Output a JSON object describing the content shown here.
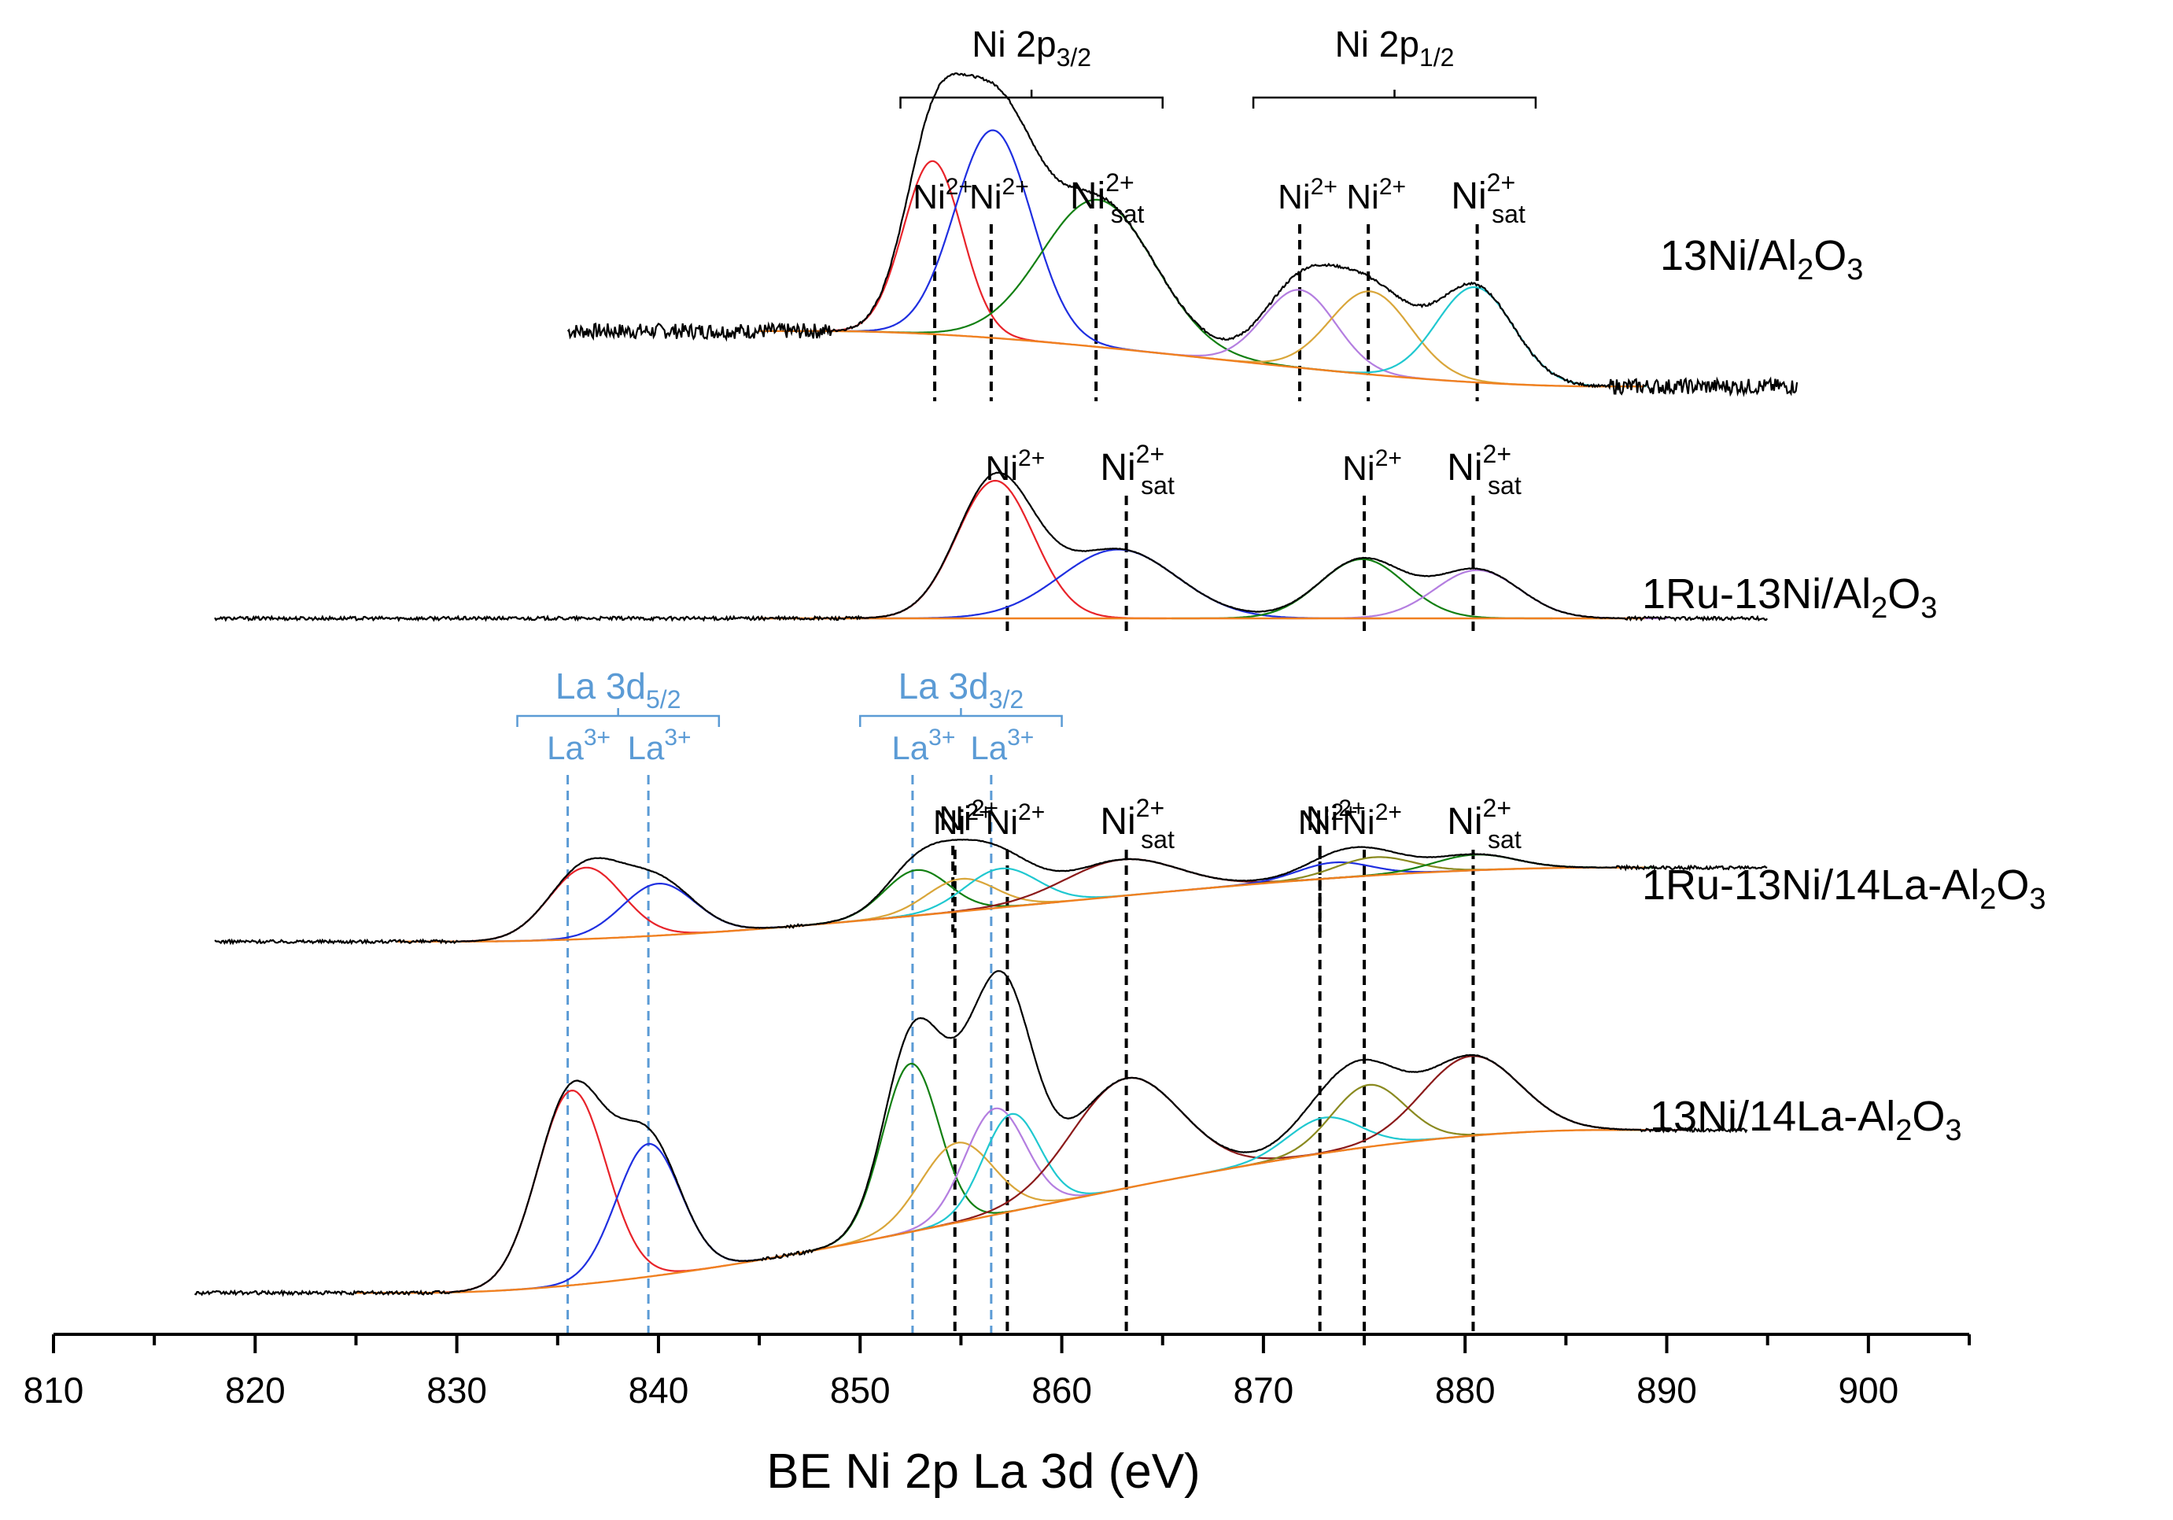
{
  "chart_data": {
    "type": "line",
    "title": "",
    "xlabel": "BE Ni 2p La 3d (eV)",
    "ylabel": "",
    "xlim": [
      810,
      905
    ],
    "x_ticks": [
      810,
      820,
      830,
      840,
      850,
      860,
      870,
      880,
      890,
      900
    ],
    "x_tick_labels": [
      "810",
      "820",
      "830",
      "840",
      "850",
      "860",
      "870",
      "880",
      "890",
      "900"
    ],
    "grid": false,
    "colors": {
      "axis": "#000000",
      "envelope": "#000000",
      "background": "#f08020",
      "ni_ref": "#000000",
      "la_ref": "#5b9bd5",
      "red": "#e8232a",
      "blue": "#1f2fe0",
      "green": "#138013",
      "violet": "#b47ee0",
      "gold": "#d9a63a",
      "cyan": "#20c8d0",
      "olive": "#8a8a20",
      "maroon": "#8b1a1a"
    },
    "group_labels": [
      {
        "text": "Ni 2p3/2",
        "main": "Ni 2p",
        "sub": "3/2",
        "color": "#000000",
        "x_range": [
          852,
          865
        ]
      },
      {
        "text": "Ni 2p1/2",
        "main": "Ni 2p",
        "sub": "1/2",
        "color": "#000000",
        "x_range": [
          869.5,
          883.5
        ]
      },
      {
        "text": "La 3d5/2",
        "main": "La 3d",
        "sub": "5/2",
        "color": "#5b9bd5",
        "x_range": [
          833,
          843
        ]
      },
      {
        "text": "La 3d3/2",
        "main": "La 3d",
        "sub": "3/2",
        "color": "#5b9bd5",
        "x_range": [
          850,
          860
        ]
      }
    ],
    "spectra": [
      {
        "label": "13Ni/Al2O3",
        "main": "13Ni/Al",
        "sub1": "2",
        "mid": "O",
        "sub2": "3",
        "x_range": [
          835.5,
          896.5
        ],
        "baseline_left": 0.36,
        "baseline_right": 0.04,
        "noise": 0.09,
        "bg_start": 848,
        "bg_end": 887,
        "peaks": [
          {
            "component": "Ni2+",
            "center": 853.6,
            "height": 1.0,
            "width": 1.45,
            "color": "#e8232a"
          },
          {
            "component": "Ni2+",
            "center": 856.6,
            "height": 1.2,
            "width": 1.9,
            "color": "#1f2fe0"
          },
          {
            "component": "Ni2+ sat",
            "center": 861.8,
            "height": 0.85,
            "width": 2.8,
            "color": "#138013"
          },
          {
            "component": "Ni2+",
            "center": 871.8,
            "height": 0.45,
            "width": 1.8,
            "color": "#b47ee0"
          },
          {
            "component": "Ni2+",
            "center": 875.3,
            "height": 0.48,
            "width": 2.0,
            "color": "#d9a63a"
          },
          {
            "component": "Ni2+ sat",
            "center": 880.5,
            "height": 0.55,
            "width": 1.9,
            "color": "#20c8d0"
          }
        ],
        "references": [
          {
            "x": 853.7,
            "label": "Ni2+",
            "sat": false,
            "color": "#000000"
          },
          {
            "x": 856.5,
            "label": "Ni2+",
            "sat": false,
            "color": "#000000"
          },
          {
            "x": 861.7,
            "label": "Ni2+sat",
            "sat": true,
            "color": "#000000"
          },
          {
            "x": 871.8,
            "label": "Ni2+",
            "sat": false,
            "color": "#000000"
          },
          {
            "x": 875.2,
            "label": "Ni2+",
            "sat": false,
            "color": "#000000"
          },
          {
            "x": 880.6,
            "label": "Ni2+sat",
            "sat": true,
            "color": "#000000"
          }
        ]
      },
      {
        "label": "1Ru-13Ni/Al2O3",
        "main": "1Ru-13Ni/Al",
        "sub1": "2",
        "mid": "O",
        "sub2": "3",
        "x_range": [
          818.0,
          895.0
        ],
        "baseline_left": 0.08,
        "baseline_right": 0.08,
        "noise": 0.025,
        "bg_start": 848,
        "bg_end": 887,
        "peaks": [
          {
            "component": "Ni2+",
            "center": 856.7,
            "height": 1.0,
            "width": 1.9,
            "color": "#e8232a"
          },
          {
            "component": "Ni2+ sat",
            "center": 862.8,
            "height": 0.5,
            "width": 2.9,
            "color": "#1f2fe0"
          },
          {
            "component": "Ni2+",
            "center": 874.9,
            "height": 0.43,
            "width": 2.1,
            "color": "#138013"
          },
          {
            "component": "Ni2+ sat",
            "center": 880.6,
            "height": 0.35,
            "width": 2.1,
            "color": "#b47ee0"
          }
        ],
        "references": [
          {
            "x": 857.3,
            "label": "Ni2+",
            "sat": false,
            "color": "#000000"
          },
          {
            "x": 863.2,
            "label": "Ni2+sat",
            "sat": true,
            "color": "#000000"
          },
          {
            "x": 875.0,
            "label": "Ni2+",
            "sat": false,
            "color": "#000000"
          },
          {
            "x": 880.4,
            "label": "Ni2+sat",
            "sat": true,
            "color": "#000000"
          }
        ]
      },
      {
        "label": "1Ru-13Ni/14La-Al2O3",
        "main": "1Ru-13Ni/14La-Al",
        "sub1": "2",
        "mid": "O",
        "sub2": "3",
        "x_range": [
          818.0,
          895.0
        ],
        "baseline_left": 0.08,
        "baseline_right": 0.65,
        "noise": 0.025,
        "bg_start": 830,
        "bg_end": 887,
        "peaks": [
          {
            "component": "La3+",
            "center": 836.4,
            "height": 0.55,
            "width": 1.8,
            "color": "#e8232a"
          },
          {
            "component": "La3+",
            "center": 840.0,
            "height": 0.4,
            "width": 1.8,
            "color": "#1f2fe0"
          },
          {
            "component": "La3+",
            "center": 852.8,
            "height": 0.35,
            "width": 1.6,
            "color": "#138013"
          },
          {
            "component": "Ni2+",
            "center": 855.0,
            "height": 0.25,
            "width": 1.7,
            "color": "#d9a63a"
          },
          {
            "component": "La3+",
            "center": 857.0,
            "height": 0.3,
            "width": 1.8,
            "color": "#20c8d0"
          },
          {
            "component": "Ni2+ sat",
            "center": 863.0,
            "height": 0.28,
            "width": 2.8,
            "color": "#8b1a1a"
          },
          {
            "component": "Ni2+",
            "center": 873.5,
            "height": 0.12,
            "width": 1.8,
            "color": "#1f2fe0"
          },
          {
            "component": "Ni2+",
            "center": 875.5,
            "height": 0.14,
            "width": 1.9,
            "color": "#8a8a20"
          },
          {
            "component": "Ni2+ sat",
            "center": 880.5,
            "height": 0.12,
            "width": 2.0,
            "color": "#138013"
          }
        ],
        "references": [
          {
            "x": 854.6,
            "label": "Ni2+",
            "sat": false,
            "color": "#000000"
          },
          {
            "x": 872.8,
            "label": "Ni2+",
            "sat": false,
            "color": "#000000"
          }
        ]
      },
      {
        "label": "13Ni/14La-Al2O3",
        "main": "13Ni/14La-Al",
        "sub1": "2",
        "mid": "O",
        "sub2": "3",
        "x_range": [
          817.0,
          894.0
        ],
        "baseline_left": 0.03,
        "baseline_right": 0.95,
        "noise": 0.02,
        "bg_start": 828,
        "bg_end": 887,
        "peaks": [
          {
            "component": "La3+",
            "center": 835.7,
            "height": 1.1,
            "width": 1.7,
            "color": "#e8232a"
          },
          {
            "component": "La3+",
            "center": 839.5,
            "height": 0.75,
            "width": 1.6,
            "color": "#1f2fe0"
          },
          {
            "component": "La3+",
            "center": 852.5,
            "height": 0.95,
            "width": 1.4,
            "color": "#138013"
          },
          {
            "component": "Ni2+",
            "center": 854.8,
            "height": 0.45,
            "width": 1.8,
            "color": "#d9a63a"
          },
          {
            "component": "La3+",
            "center": 856.7,
            "height": 0.6,
            "width": 1.5,
            "color": "#b47ee0"
          },
          {
            "component": "Ni2+",
            "center": 857.5,
            "height": 0.55,
            "width": 1.4,
            "color": "#20c8d0"
          },
          {
            "component": "Ni2+ sat",
            "center": 863.2,
            "height": 0.62,
            "width": 2.7,
            "color": "#8b1a1a"
          },
          {
            "component": "Ni2+",
            "center": 873.0,
            "height": 0.2,
            "width": 1.8,
            "color": "#20c8d0"
          },
          {
            "component": "Ni2+",
            "center": 875.2,
            "height": 0.35,
            "width": 1.8,
            "color": "#8a8a20"
          },
          {
            "component": "Ni2+ sat",
            "center": 880.3,
            "height": 0.45,
            "width": 2.4,
            "color": "#8b1a1a"
          }
        ],
        "references": [
          {
            "x": 854.7,
            "label": "Ni2+",
            "sat": false,
            "color": "#000000"
          },
          {
            "x": 857.3,
            "label": "Ni2+",
            "sat": false,
            "color": "#000000"
          },
          {
            "x": 863.2,
            "label": "Ni2+sat",
            "sat": true,
            "color": "#000000"
          },
          {
            "x": 872.8,
            "label": "Ni2+",
            "sat": false,
            "color": "#000000"
          },
          {
            "x": 875.0,
            "label": "Ni2+",
            "sat": false,
            "color": "#000000"
          },
          {
            "x": 880.4,
            "label": "Ni2+sat",
            "sat": true,
            "color": "#000000"
          },
          {
            "x": 835.5,
            "label": "La3+",
            "sat": false,
            "color": "#5b9bd5"
          },
          {
            "x": 839.5,
            "label": "La3+",
            "sat": false,
            "color": "#5b9bd5"
          },
          {
            "x": 852.6,
            "label": "La3+",
            "sat": false,
            "color": "#5b9bd5"
          },
          {
            "x": 856.5,
            "label": "La3+",
            "sat": false,
            "color": "#5b9bd5"
          }
        ]
      }
    ]
  }
}
